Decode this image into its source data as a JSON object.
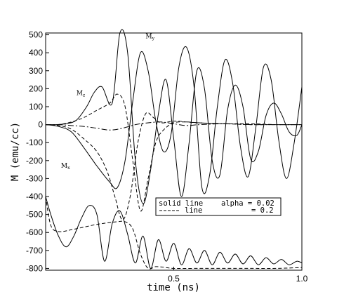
{
  "chart_data": {
    "type": "line",
    "title": "",
    "xlabel": "time (ns)",
    "ylabel": "M (emu/cc)",
    "xlim": [
      0.0,
      1.0
    ],
    "ylim": [
      -810,
      510
    ],
    "x_ticks": [
      0.5,
      1.0
    ],
    "x_tick_labels": [
      "0.5",
      "1.0"
    ],
    "y_ticks": [
      500,
      400,
      300,
      200,
      100,
      0,
      -100,
      -200,
      -300,
      -400,
      -500,
      -600,
      -700,
      -800
    ],
    "y_tick_labels": [
      "500",
      "400",
      "300",
      "200",
      "100",
      "0",
      "-100",
      "-200",
      "-300",
      "-400",
      "-500",
      "-600",
      "-700",
      "-800"
    ],
    "grid": false,
    "legend_position": "center-right",
    "legend": {
      "line1_label": "solid line",
      "line1_value": "alpha = 0.02",
      "line2_label": "line",
      "line2_value": "= 0.2"
    },
    "annotations": [
      {
        "main": "M",
        "sub": "y",
        "x": 0.39,
        "y": 480
      },
      {
        "main": "M",
        "sub": "z",
        "x": 0.12,
        "y": 165
      },
      {
        "main": "M",
        "sub": "x",
        "x": 0.06,
        "y": -240
      }
    ],
    "series": [
      {
        "style": "solid",
        "component": "My",
        "x": [
          0.0,
          0.05,
          0.1,
          0.15,
          0.2,
          0.25,
          0.28,
          0.31,
          0.34,
          0.37,
          0.4,
          0.43,
          0.46,
          0.49,
          0.52,
          0.55,
          0.58,
          0.61,
          0.64,
          0.67,
          0.7,
          0.73,
          0.76,
          0.79,
          0.82,
          0.85,
          0.88,
          0.91,
          0.94,
          0.97,
          1.0
        ],
        "y": [
          0,
          -10,
          -40,
          -130,
          -230,
          -320,
          -350,
          -200,
          130,
          400,
          300,
          20,
          -150,
          -50,
          320,
          430,
          200,
          -350,
          -280,
          100,
          360,
          230,
          -120,
          -290,
          -20,
          320,
          250,
          -90,
          -300,
          -100,
          210
        ]
      },
      {
        "style": "solid",
        "component": "Mz",
        "x": [
          0.0,
          0.04,
          0.08,
          0.12,
          0.16,
          0.19,
          0.22,
          0.26,
          0.29,
          0.32,
          0.35,
          0.38,
          0.41,
          0.44,
          0.47,
          0.5,
          0.53,
          0.56,
          0.59,
          0.62,
          0.65,
          0.68,
          0.71,
          0.74,
          0.77,
          0.8,
          0.83,
          0.86,
          0.89,
          0.92,
          0.95,
          0.98,
          1.0
        ],
        "y": [
          0,
          0,
          5,
          25,
          100,
          180,
          210,
          120,
          510,
          400,
          -200,
          -440,
          -250,
          60,
          250,
          -80,
          -400,
          -100,
          300,
          200,
          -200,
          -280,
          80,
          220,
          100,
          -190,
          -150,
          50,
          120,
          60,
          -40,
          -60,
          0
        ]
      },
      {
        "style": "solid",
        "component": "Mx_lower",
        "x": [
          0.0,
          0.02,
          0.05,
          0.08,
          0.11,
          0.14,
          0.17,
          0.2,
          0.23,
          0.26,
          0.29,
          0.32,
          0.35,
          0.38,
          0.41,
          0.44,
          0.47,
          0.5,
          0.53,
          0.56,
          0.59,
          0.62,
          0.65,
          0.68,
          0.71,
          0.74,
          0.77,
          0.8,
          0.83,
          0.86,
          0.89,
          0.92,
          0.95,
          0.98,
          1.0
        ],
        "y": [
          -400,
          -500,
          -620,
          -680,
          -620,
          -520,
          -450,
          -500,
          -760,
          -550,
          -480,
          -610,
          -770,
          -620,
          -800,
          -640,
          -760,
          -660,
          -780,
          -690,
          -770,
          -700,
          -780,
          -710,
          -770,
          -720,
          -775,
          -730,
          -780,
          -740,
          -775,
          -750,
          -780,
          -760,
          -770
        ]
      },
      {
        "style": "dashed",
        "component": "My",
        "x": [
          0.0,
          0.05,
          0.1,
          0.15,
          0.2,
          0.24,
          0.27,
          0.3,
          0.33,
          0.36,
          0.39,
          0.42,
          0.45,
          0.5,
          0.55,
          0.6,
          0.7,
          0.8,
          0.9,
          1.0
        ],
        "y": [
          0,
          -5,
          -25,
          -80,
          -150,
          -260,
          -400,
          -530,
          -400,
          -100,
          60,
          40,
          10,
          20,
          15,
          10,
          5,
          5,
          0,
          0
        ]
      },
      {
        "style": "dashed",
        "component": "Mz",
        "x": [
          0.0,
          0.05,
          0.1,
          0.15,
          0.2,
          0.25,
          0.28,
          0.31,
          0.34,
          0.37,
          0.4,
          0.43,
          0.46,
          0.5,
          0.55,
          0.6,
          0.7,
          0.8,
          0.9,
          1.0
        ],
        "y": [
          0,
          0,
          15,
          40,
          80,
          120,
          170,
          100,
          -200,
          -480,
          -300,
          -100,
          -30,
          10,
          15,
          10,
          5,
          0,
          0,
          0
        ]
      },
      {
        "style": "dashed",
        "component": "Mx_lower",
        "x": [
          0.0,
          0.02,
          0.05,
          0.1,
          0.15,
          0.2,
          0.25,
          0.28,
          0.31,
          0.34,
          0.37,
          0.4,
          0.43,
          0.47,
          0.5,
          0.6,
          0.7,
          0.8,
          0.9,
          1.0
        ],
        "y": [
          -400,
          -560,
          -595,
          -585,
          -570,
          -555,
          -545,
          -540,
          -540,
          -580,
          -720,
          -800,
          -790,
          -795,
          -800,
          -800,
          -800,
          -800,
          -800,
          -795
        ]
      },
      {
        "style": "dashdot",
        "component": "Mx_upper",
        "x": [
          0.0,
          0.05,
          0.1,
          0.15,
          0.2,
          0.25,
          0.3,
          0.35,
          0.4,
          0.45,
          0.5,
          0.55,
          0.6,
          0.7,
          0.8,
          0.9,
          1.0
        ],
        "y": [
          0,
          0,
          -5,
          -10,
          -20,
          -30,
          -20,
          0,
          10,
          15,
          5,
          -5,
          0,
          5,
          0,
          0,
          0
        ]
      }
    ]
  }
}
